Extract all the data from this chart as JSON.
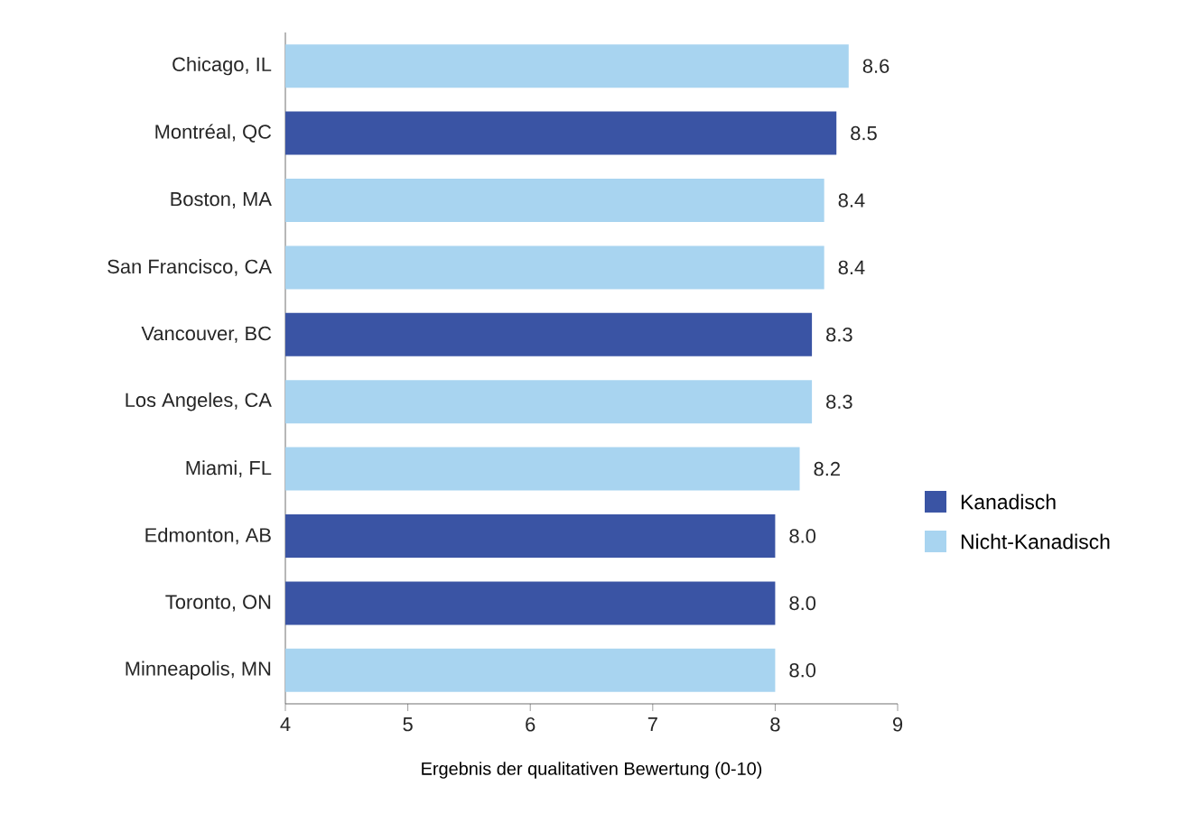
{
  "chart_data": {
    "type": "bar",
    "orientation": "horizontal",
    "xlabel": "Ergebnis der qualitativen Bewertung (0-10)",
    "categories": [
      "Chicago, IL",
      "Montréal, QC",
      "Boston, MA",
      "San Francisco, CA",
      "Vancouver, BC",
      "Los Angeles, CA",
      "Miami, FL",
      "Edmonton, AB",
      "Toronto, ON",
      "Minneapolis, MN"
    ],
    "series": [
      {
        "name": "Kanadisch",
        "color": "#3a54a4",
        "values": [
          null,
          8.5,
          null,
          null,
          8.3,
          null,
          null,
          8.0,
          8.0,
          null
        ],
        "value_labels": [
          null,
          "8.5",
          null,
          null,
          "8.3",
          null,
          null,
          "8.0",
          "8.0",
          null
        ]
      },
      {
        "name": "Nicht-Kanadisch",
        "color": "#a8d4f0",
        "values": [
          8.6,
          null,
          8.4,
          8.4,
          null,
          8.3,
          8.2,
          null,
          null,
          8.0
        ],
        "value_labels": [
          "8.6",
          null,
          "8.4",
          "8.4",
          null,
          "8.3",
          "8.2",
          null,
          null,
          "8.0"
        ]
      }
    ],
    "xlim": [
      4,
      9
    ],
    "xticks": [
      4,
      5,
      6,
      7,
      8,
      9
    ],
    "legend": "right",
    "grid": false
  }
}
